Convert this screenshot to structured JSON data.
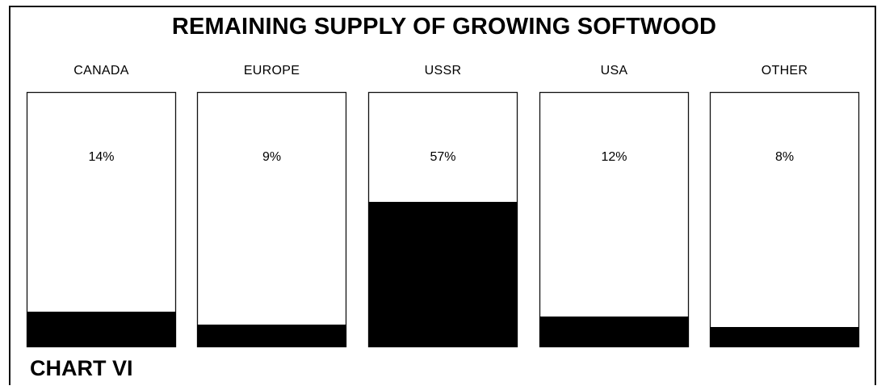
{
  "chart_data": {
    "type": "bar",
    "title": "REMAINING SUPPLY OF GROWING SOFTWOOD",
    "categories": [
      "CANADA",
      "EUROPE",
      "USSR",
      "USA",
      "OTHER"
    ],
    "values": [
      14,
      9,
      57,
      12,
      8
    ],
    "value_labels": [
      "14%",
      "9%",
      "57%",
      "12%",
      "8%"
    ],
    "ylim": [
      0,
      100
    ],
    "xlabel": "",
    "ylabel": "",
    "grid": false,
    "colors": {
      "fill": "#000000",
      "panel": "#ffffff",
      "border": "#111111"
    }
  },
  "caption": "CHART VI"
}
